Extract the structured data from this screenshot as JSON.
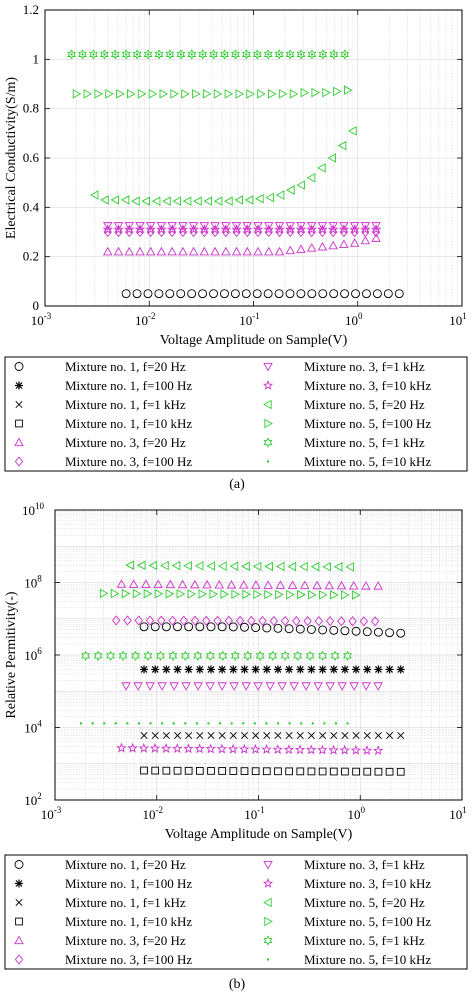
{
  "colors": {
    "black": "#000000",
    "magenta": "#cc33cc",
    "green": "#33cc33",
    "grid": "#d0d0d0"
  },
  "legend_entries": [
    {
      "label": "Mixture no. 1, f=20 Hz",
      "marker": "circle",
      "color": "black"
    },
    {
      "label": "Mixture no. 1, f=100 Hz",
      "marker": "asterisk",
      "color": "black"
    },
    {
      "label": "Mixture no. 1, f=1 kHz",
      "marker": "x",
      "color": "black"
    },
    {
      "label": "Mixture no. 1, f=10 kHz",
      "marker": "square",
      "color": "black"
    },
    {
      "label": "Mixture no. 3, f=20 Hz",
      "marker": "triangle-up",
      "color": "magenta"
    },
    {
      "label": "Mixture no. 3, f=100 Hz",
      "marker": "diamond",
      "color": "magenta"
    },
    {
      "label": "Mixture no. 3, f=1 kHz",
      "marker": "triangle-down",
      "color": "magenta"
    },
    {
      "label": "Mixture no. 3, f=10 kHz",
      "marker": "pentagram",
      "color": "magenta"
    },
    {
      "label": "Mixture no. 5, f=20 Hz",
      "marker": "triangle-left",
      "color": "green"
    },
    {
      "label": "Mixture no. 5, f=100 Hz",
      "marker": "triangle-right",
      "color": "green"
    },
    {
      "label": "Mixture no. 5, f=1 kHz",
      "marker": "hexagram",
      "color": "green"
    },
    {
      "label": "Mixture no. 5, f=10 kHz",
      "marker": "dot",
      "color": "green"
    }
  ],
  "chart_data": [
    {
      "type": "scatter",
      "caption": "(a)",
      "xlabel": "Voltage Amplitude on Sample(V)",
      "ylabel": "Electrical Conductivity(S/m)",
      "xscale": "log",
      "xlim": [
        0.001,
        10
      ],
      "ylim": [
        0,
        1.2
      ],
      "xticks": [
        0.001,
        0.01,
        0.1,
        1,
        10
      ],
      "xtick_labels": [
        [
          "10",
          "-3"
        ],
        [
          "10",
          "-2"
        ],
        [
          "10",
          "-1"
        ],
        [
          "10",
          "0"
        ],
        [
          "10",
          "1"
        ]
      ],
      "yticks": [
        0,
        0.2,
        0.4,
        0.6,
        0.8,
        1,
        1.2
      ],
      "ytick_labels": [
        "0",
        "0.2",
        "0.4",
        "0.6",
        "0.8",
        "1",
        "1.2"
      ],
      "grid": true,
      "series": [
        {
          "name": "Mixture no. 1, f=20 Hz",
          "x_start": 0.006,
          "x_end": 2.5,
          "count": 26,
          "y": [
            0.05,
            0.05
          ]
        },
        {
          "name": "Mixture no. 3, f=20 Hz",
          "x_start": 0.004,
          "x_end": 1.5,
          "count": 26,
          "y": [
            0.22,
            0.22,
            0.22,
            0.22,
            0.22,
            0.22,
            0.22,
            0.22,
            0.22,
            0.22,
            0.22,
            0.22,
            0.22,
            0.22,
            0.22,
            0.22,
            0.22,
            0.225,
            0.23,
            0.235,
            0.24,
            0.245,
            0.25,
            0.255,
            0.265,
            0.275
          ]
        },
        {
          "name": "Mixture no. 3, f=100 Hz",
          "x_start": 0.004,
          "x_end": 1.5,
          "count": 26,
          "y": [
            0.3,
            0.3
          ]
        },
        {
          "name": "Mixture no. 3, f=1 kHz",
          "x_start": 0.004,
          "x_end": 1.5,
          "count": 26,
          "y": [
            0.325,
            0.325
          ]
        },
        {
          "name": "Mixture no. 3, f=10 kHz",
          "x_start": 0.004,
          "x_end": 1.5,
          "count": 26,
          "y": [
            0.31,
            0.31
          ]
        },
        {
          "name": "Mixture no. 5, f=20 Hz",
          "x_start": 0.003,
          "x_end": 0.9,
          "count": 26,
          "y": [
            0.45,
            0.43,
            0.43,
            0.43,
            0.425,
            0.425,
            0.425,
            0.425,
            0.425,
            0.425,
            0.425,
            0.425,
            0.425,
            0.425,
            0.43,
            0.43,
            0.435,
            0.44,
            0.45,
            0.47,
            0.49,
            0.52,
            0.56,
            0.6,
            0.65,
            0.71
          ]
        },
        {
          "name": "Mixture no. 5, f=100 Hz",
          "x_start": 0.002,
          "x_end": 0.8,
          "count": 26,
          "y": [
            0.86,
            0.86,
            0.86,
            0.86,
            0.86,
            0.86,
            0.86,
            0.86,
            0.86,
            0.86,
            0.86,
            0.86,
            0.86,
            0.86,
            0.86,
            0.86,
            0.86,
            0.86,
            0.86,
            0.86,
            0.86,
            0.865,
            0.865,
            0.865,
            0.87,
            0.875
          ]
        },
        {
          "name": "Mixture no. 5, f=1 kHz",
          "x_start": 0.0018,
          "x_end": 0.75,
          "count": 26,
          "y": [
            1.02,
            1.02
          ]
        },
        {
          "name": "Mixture no. 5, f=10 kHz",
          "x_start": 0.0018,
          "x_end": 0.75,
          "count": 26,
          "y": [
            1.02,
            1.02
          ]
        }
      ]
    },
    {
      "type": "scatter",
      "caption": "(b)",
      "xlabel": "Voltage Amplitude on Sample(V)",
      "ylabel": "Relative Permitivity(-)",
      "xscale": "log",
      "yscale": "log",
      "xlim": [
        0.001,
        10
      ],
      "ylim": [
        100,
        10000000000
      ],
      "xticks": [
        0.001,
        0.01,
        0.1,
        1,
        10
      ],
      "xtick_labels": [
        [
          "10",
          "-3"
        ],
        [
          "10",
          "-2"
        ],
        [
          "10",
          "-1"
        ],
        [
          "10",
          "0"
        ],
        [
          "10",
          "1"
        ]
      ],
      "yticks": [
        100,
        10000,
        1000000,
        100000000,
        10000000000
      ],
      "ytick_labels": [
        [
          "10",
          "2"
        ],
        [
          "10",
          "4"
        ],
        [
          "10",
          "6"
        ],
        [
          "10",
          "8"
        ],
        [
          "10",
          "10"
        ]
      ],
      "grid": true,
      "series": [
        {
          "name": "Mixture no. 5, f=20 Hz",
          "x_start": 0.0055,
          "x_end": 0.8,
          "count": 20,
          "y": [
            300000000,
            280000000,
            270000000
          ]
        },
        {
          "name": "Mixture no. 3, f=20 Hz",
          "x_start": 0.0045,
          "x_end": 1.5,
          "count": 22,
          "y": [
            90000000,
            85000000,
            80000000
          ]
        },
        {
          "name": "Mixture no. 5, f=100 Hz",
          "x_start": 0.003,
          "x_end": 0.9,
          "count": 24,
          "y": [
            50000000,
            45000000
          ]
        },
        {
          "name": "Mixture no. 3, f=100 Hz",
          "x_start": 0.004,
          "x_end": 1.4,
          "count": 24,
          "y": [
            9000000,
            8500000
          ]
        },
        {
          "name": "Mixture no. 1, f=20 Hz",
          "x_start": 0.0075,
          "x_end": 2.5,
          "count": 24,
          "y": [
            6000000,
            6000000,
            5000000,
            4000000
          ]
        },
        {
          "name": "Mixture no. 5, f=1 kHz",
          "x_start": 0.002,
          "x_end": 0.75,
          "count": 22,
          "y": [
            950000,
            950000
          ]
        },
        {
          "name": "Mixture no. 1, f=100 Hz",
          "x_start": 0.0075,
          "x_end": 2.5,
          "count": 24,
          "y": [
            400000,
            400000
          ]
        },
        {
          "name": "Mixture no. 3, f=1 kHz",
          "x_start": 0.005,
          "x_end": 1.5,
          "count": 22,
          "y": [
            140000,
            140000
          ]
        },
        {
          "name": "Mixture no. 5, f=10 kHz",
          "x_start": 0.0018,
          "x_end": 0.75,
          "count": 24,
          "y": [
            13000,
            13000
          ]
        },
        {
          "name": "Mixture no. 1, f=1 kHz",
          "x_start": 0.0075,
          "x_end": 2.5,
          "count": 24,
          "y": [
            6000,
            6000
          ]
        },
        {
          "name": "Mixture no. 3, f=10 kHz",
          "x_start": 0.0045,
          "x_end": 1.5,
          "count": 24,
          "y": [
            2700,
            2500,
            2300
          ]
        },
        {
          "name": "Mixture no. 1, f=10 kHz",
          "x_start": 0.0075,
          "x_end": 2.5,
          "count": 24,
          "y": [
            650,
            620,
            600
          ]
        }
      ]
    }
  ]
}
